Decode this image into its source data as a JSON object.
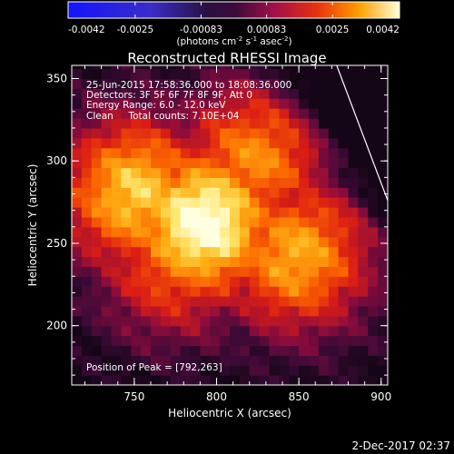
{
  "chart_data": {
    "type": "heatmap",
    "title": "Reconstructed RHESSI Image",
    "xlabel": "Heliocentric X (arcsec)",
    "ylabel": "Heliocentric Y (arcsec)",
    "xlim": [
      712,
      904
    ],
    "ylim": [
      164,
      358
    ],
    "x_ticks": [
      750,
      800,
      850,
      900
    ],
    "y_ticks": [
      200,
      250,
      300,
      350
    ],
    "annotations": [
      "25-Jun-2015 17:58:36.000 to 18:08:36.000",
      "Detectors: 3F 5F 6F 7F 8F 9F, Att 0",
      "Energy Range: 6.0 - 12.0 keV",
      "Clean     Total counts: 7.10E+04"
    ],
    "peak_label": "Position of Peak = [792,263]",
    "peak": [
      792,
      263
    ],
    "colorbar": {
      "min": -0.0042,
      "max": 0.0042,
      "ticks": [
        "-0.0042",
        "-0.0025",
        "-0.00083",
        "0.00083",
        "0.0025",
        "0.0042"
      ],
      "unit_text": "(photons cm",
      "unit_sup1": "-2",
      "unit_mid": " s",
      "unit_sup2": "-1",
      "unit_end": " asec",
      "unit_sup3": "-2",
      "unit_close": ")"
    },
    "sources": [
      {
        "x": 792,
        "y": 263,
        "value": 0.0042
      },
      {
        "x": 751,
        "y": 281,
        "value": 0.0034
      },
      {
        "x": 848,
        "y": 243,
        "value": 0.0031
      },
      {
        "x": 822,
        "y": 300,
        "value": 0.0028
      },
      {
        "x": 775,
        "y": 240,
        "value": 0.0025
      }
    ],
    "limb_line": [
      [
        873,
        358
      ],
      [
        904,
        276
      ]
    ]
  },
  "footer_date": "2-Dec-2017 02:37"
}
